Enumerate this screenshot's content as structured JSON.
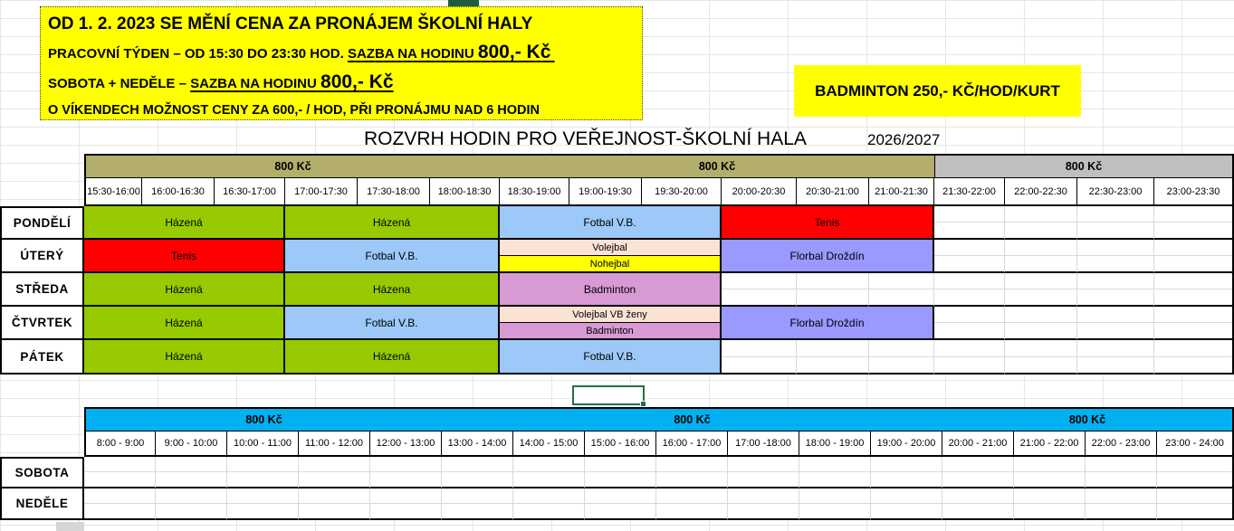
{
  "notice": {
    "line1": "OD 1. 2. 2023 SE MĚNÍ CENA ZA PRONÁJEM ŠKOLNÍ HALY",
    "line2_prefix": "PRACOVNÍ TÝDEN – OD  15:30 DO 23:30 HOD. ",
    "line2_underline": "SAZBA NA HODINU ",
    "line2_price": "800,-  Kč",
    "line3_prefix": "SOBOTA + NEDĚLE – ",
    "line3_underline": "SAZBA NA HODINU ",
    "line3_price": "800,- Kč",
    "line4": "O VÍKENDECH MOŽNOST CENY ZA 600,- / HOD,  PŘI PRONÁJMU NAD 6 HODIN"
  },
  "badminton_note": "BADMINTON  250,- KČ/HOD/KURT",
  "title": "ROZVRH HODIN PRO VEŘEJNOST-ŠKOLNÍ HALA",
  "season": "2026/2027",
  "colors": {
    "olive": "#B4AE6C",
    "gray": "#BFBFBF",
    "cyan": "#00B0F0",
    "green": "#97CA00",
    "blue": "#9CC9F8",
    "red": "#FF0000",
    "purple": "#9999FF",
    "peach": "#FBE3D4",
    "yellow": "#FFFF00",
    "plum": "#D89AD5"
  },
  "weekday_table": {
    "bands": [
      {
        "label": "800 Kč",
        "span": 6,
        "color": "olive"
      },
      {
        "label": "800 Kč",
        "span": 6,
        "color": "olive"
      },
      {
        "label": "800 Kč",
        "span": 4,
        "color": "gray"
      }
    ],
    "time_slots": [
      "15:30-16:00",
      "16:00-16:30",
      "16:30-17:00",
      "17:00-17:30",
      "17:30-18:00",
      "18:00-18:30",
      "18:30-19:00",
      "19:00-19:30",
      "19:30-20:00",
      "20:00-20:30",
      "20:30-21:00",
      "21:00-21:30",
      "21:30-22:00",
      "22:00-22:30",
      "22:30-23:00",
      "23:00-23:30"
    ],
    "rows": [
      {
        "day": "PONDĚLÍ",
        "blocks": [
          {
            "label": "Házená",
            "span": 3,
            "color": "green"
          },
          {
            "label": "Házená",
            "span": 3,
            "color": "green"
          },
          {
            "label": "Fotbal V.B.",
            "span": 3,
            "color": "blue"
          },
          {
            "label": "Tenis",
            "span": 3,
            "color": "red"
          },
          {
            "empty": 4
          }
        ]
      },
      {
        "day": "ÚTERÝ",
        "blocks": [
          {
            "label": "Tenis",
            "span": 3,
            "color": "red"
          },
          {
            "label": "Fotbal V.B.",
            "span": 3,
            "color": "blue"
          },
          {
            "split": true,
            "span": 3,
            "top": {
              "label": "Volejbal",
              "color": "peach"
            },
            "bottom": {
              "label": "Nohejbal",
              "color": "yellow"
            }
          },
          {
            "label": "Florbal Droždín",
            "span": 3,
            "color": "purple"
          },
          {
            "empty": 4
          }
        ]
      },
      {
        "day": "STŘEDA",
        "blocks": [
          {
            "label": "Házená",
            "span": 3,
            "color": "green"
          },
          {
            "label": "Házena",
            "span": 3,
            "color": "green"
          },
          {
            "label": "Badminton",
            "span": 3,
            "color": "plum"
          },
          {
            "empty": 7
          }
        ]
      },
      {
        "day": "ČTVRTEK",
        "blocks": [
          {
            "label": "Házená",
            "span": 3,
            "color": "green"
          },
          {
            "label": "Fotbal V.B.",
            "span": 3,
            "color": "blue"
          },
          {
            "split": true,
            "span": 3,
            "top": {
              "label": "Volejbal VB ženy",
              "color": "peach"
            },
            "bottom": {
              "label": "Badminton",
              "color": "plum"
            }
          },
          {
            "label": "Florbal Droždín",
            "span": 3,
            "color": "purple"
          },
          {
            "empty": 4
          }
        ]
      },
      {
        "day": "PÁTEK",
        "blocks": [
          {
            "label": "Házená",
            "span": 3,
            "color": "green"
          },
          {
            "label": "Házená",
            "span": 3,
            "color": "green"
          },
          {
            "label": "Fotbal V.B.",
            "span": 3,
            "color": "blue"
          },
          {
            "empty": 7
          }
        ]
      }
    ]
  },
  "weekend_table": {
    "bands": [
      {
        "label": "800 Kč",
        "span": 5,
        "color": "cyan"
      },
      {
        "label": "800 Kč",
        "span": 7,
        "color": "cyan"
      },
      {
        "label": "800 Kč",
        "span": 4,
        "color": "cyan"
      }
    ],
    "time_slots": [
      "8:00 - 9:00",
      "9:00 - 10:00",
      "10:00 - 11:00",
      "11:00 - 12:00",
      "12:00 - 13:00",
      "13:00 - 14:00",
      "14:00 - 15:00",
      "15:00 - 16:00",
      "16:00 - 17:00",
      "17:00 -18:00",
      "18:00 - 19:00",
      "19:00 - 20:00",
      "20:00 - 21:00",
      "21:00 - 22:00",
      "22:00 - 23:00",
      "23:00 - 24:00"
    ],
    "rows": [
      {
        "day": "SOBOTA",
        "blocks": [
          {
            "empty": 16
          }
        ]
      },
      {
        "day": "NEDĚLE",
        "blocks": [
          {
            "empty": 16
          }
        ]
      }
    ]
  }
}
